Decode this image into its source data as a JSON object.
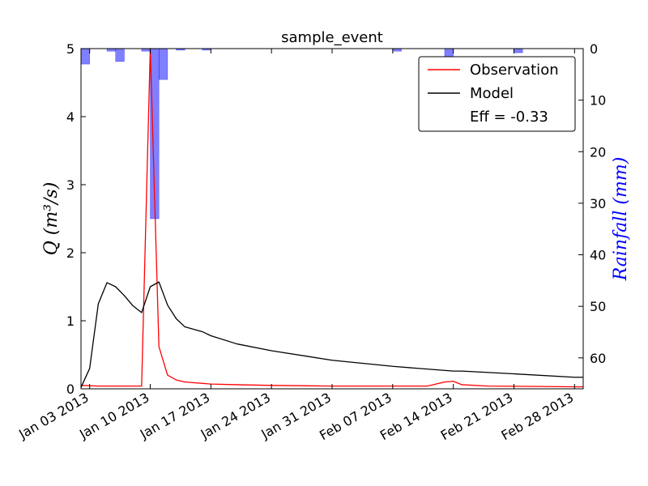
{
  "chart_data": {
    "type": "line",
    "title": "sample_event",
    "ylabel": "Q (m³/s)",
    "ylabel_right": "Rainfall (mm)",
    "ylim": [
      0,
      5
    ],
    "ylim_right": [
      66,
      0
    ],
    "xlim": [
      "2013-01-02",
      "2013-03-01"
    ],
    "yticks": [
      0,
      1,
      2,
      3,
      4,
      5
    ],
    "yticks_right": [
      0,
      10,
      20,
      30,
      40,
      50,
      60
    ],
    "xticks": [
      {
        "date": "2013-01-03",
        "label": "Jan 03 2013"
      },
      {
        "date": "2013-01-10",
        "label": "Jan 10 2013"
      },
      {
        "date": "2013-01-17",
        "label": "Jan 17 2013"
      },
      {
        "date": "2013-01-24",
        "label": "Jan 24 2013"
      },
      {
        "date": "2013-01-31",
        "label": "Jan 31 2013"
      },
      {
        "date": "2013-02-07",
        "label": "Feb 07 2013"
      },
      {
        "date": "2013-02-14",
        "label": "Feb 14 2013"
      },
      {
        "date": "2013-02-21",
        "label": "Feb 21 2013"
      },
      {
        "date": "2013-02-28",
        "label": "Feb 28 2013"
      }
    ],
    "grid": false,
    "legend_position": "top-right",
    "legend_note": "Eff = -0.33",
    "series": [
      {
        "name": "Observation",
        "color": "#ff0000",
        "points": [
          [
            "2013-01-02",
            0.05
          ],
          [
            "2013-01-04",
            0.04
          ],
          [
            "2013-01-06",
            0.04
          ],
          [
            "2013-01-08",
            0.04
          ],
          [
            "2013-01-09",
            0.04
          ],
          [
            "2013-01-10",
            5.0
          ],
          [
            "2013-01-11",
            0.62
          ],
          [
            "2013-01-12",
            0.2
          ],
          [
            "2013-01-13",
            0.13
          ],
          [
            "2013-01-14",
            0.1
          ],
          [
            "2013-01-17",
            0.07
          ],
          [
            "2013-01-20",
            0.06
          ],
          [
            "2013-01-24",
            0.05
          ],
          [
            "2013-01-31",
            0.04
          ],
          [
            "2013-02-07",
            0.04
          ],
          [
            "2013-02-11",
            0.04
          ],
          [
            "2013-02-13",
            0.1
          ],
          [
            "2013-02-14",
            0.11
          ],
          [
            "2013-02-15",
            0.06
          ],
          [
            "2013-02-18",
            0.04
          ],
          [
            "2013-02-28",
            0.03
          ],
          [
            "2013-03-01",
            0.03
          ]
        ]
      },
      {
        "name": "Model",
        "color": "#000000",
        "points": [
          [
            "2013-01-02",
            0.02
          ],
          [
            "2013-01-03",
            0.3
          ],
          [
            "2013-01-04",
            1.25
          ],
          [
            "2013-01-05",
            1.56
          ],
          [
            "2013-01-06",
            1.5
          ],
          [
            "2013-01-07",
            1.37
          ],
          [
            "2013-01-08",
            1.22
          ],
          [
            "2013-01-09",
            1.12
          ],
          [
            "2013-01-10",
            1.5
          ],
          [
            "2013-01-11",
            1.57
          ],
          [
            "2013-01-12",
            1.23
          ],
          [
            "2013-01-13",
            1.03
          ],
          [
            "2013-01-14",
            0.91
          ],
          [
            "2013-01-16",
            0.84
          ],
          [
            "2013-01-17",
            0.78
          ],
          [
            "2013-01-20",
            0.66
          ],
          [
            "2013-01-24",
            0.56
          ],
          [
            "2013-01-31",
            0.42
          ],
          [
            "2013-02-07",
            0.33
          ],
          [
            "2013-02-14",
            0.26
          ],
          [
            "2013-02-15",
            0.26
          ],
          [
            "2013-02-21",
            0.22
          ],
          [
            "2013-02-28",
            0.17
          ],
          [
            "2013-03-01",
            0.17
          ]
        ]
      }
    ],
    "rainfall": {
      "color": "#0000ff",
      "bars": [
        {
          "date": "2013-01-02",
          "value": 3
        },
        {
          "date": "2013-01-05",
          "value": 0.5
        },
        {
          "date": "2013-01-06",
          "value": 2.5
        },
        {
          "date": "2013-01-09",
          "value": 0.5
        },
        {
          "date": "2013-01-10",
          "value": 33
        },
        {
          "date": "2013-01-11",
          "value": 6
        },
        {
          "date": "2013-01-13",
          "value": 0.3
        },
        {
          "date": "2013-01-16",
          "value": 0.3
        },
        {
          "date": "2013-02-07",
          "value": 0.5
        },
        {
          "date": "2013-02-13",
          "value": 2.5
        },
        {
          "date": "2013-02-21",
          "value": 0.8
        }
      ]
    }
  }
}
